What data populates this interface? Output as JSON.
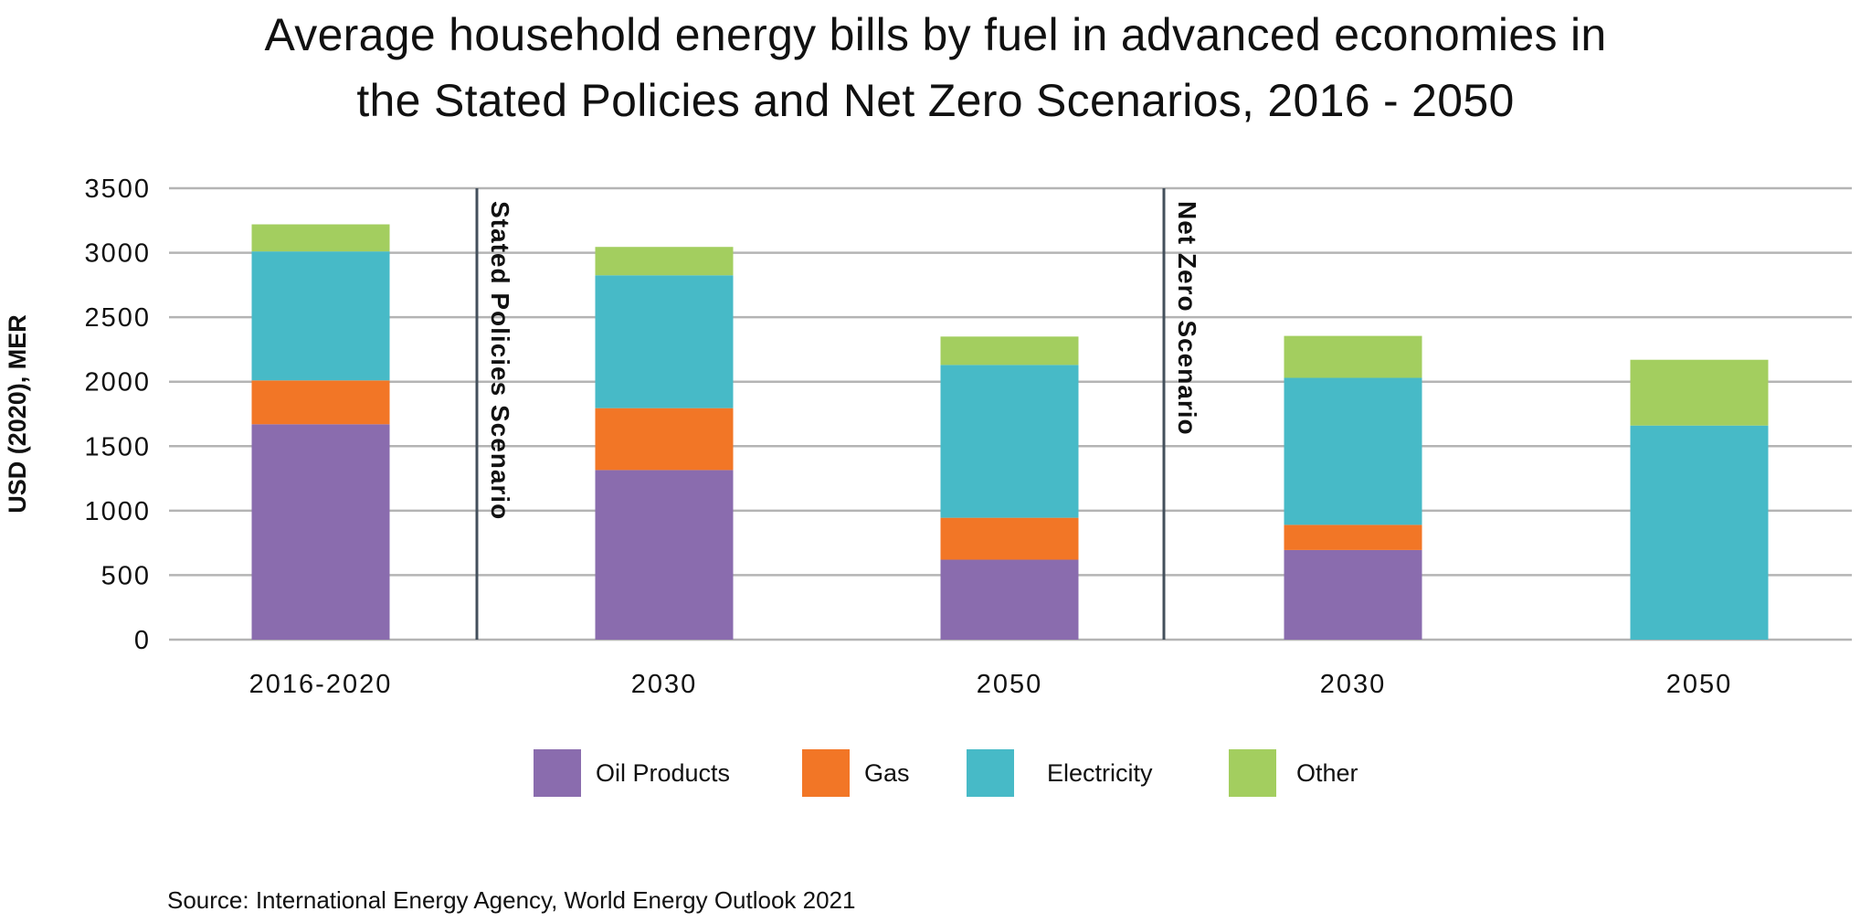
{
  "chart_data": {
    "type": "bar",
    "stacked": true,
    "title": [
      "Average household energy bills by fuel in advanced economies in",
      "the Stated Policies and Net Zero Scenarios, 2016 - 2050"
    ],
    "ylabel": "USD (2020), MER",
    "xlabel": "",
    "ylim": [
      0,
      3500
    ],
    "yticks": [
      0,
      500,
      1000,
      1500,
      2000,
      2500,
      3000,
      3500
    ],
    "grid": true,
    "categories": [
      "2016-2020",
      "2030",
      "2050",
      "2030",
      "2050"
    ],
    "series": [
      {
        "name": "Oil Products",
        "color": "#8a6cae",
        "values": [
          1670,
          1315,
          620,
          695,
          0
        ]
      },
      {
        "name": "Gas",
        "color": "#f27626",
        "values": [
          340,
          480,
          325,
          195,
          0
        ]
      },
      {
        "name": "Electricity",
        "color": "#47bac7",
        "values": [
          1000,
          1030,
          1185,
          1140,
          1660
        ]
      },
      {
        "name": "Other",
        "color": "#a3ce5f",
        "values": [
          210,
          220,
          220,
          325,
          510
        ]
      }
    ],
    "annotations": [
      {
        "text": "Stated Policies Scenario",
        "between_categories": [
          0,
          1
        ]
      },
      {
        "text": "Net Zero Scenario",
        "between_categories": [
          2,
          3
        ]
      }
    ],
    "legend_position": "bottom"
  },
  "source": "Source: International Energy Agency, World Energy Outlook 2021"
}
